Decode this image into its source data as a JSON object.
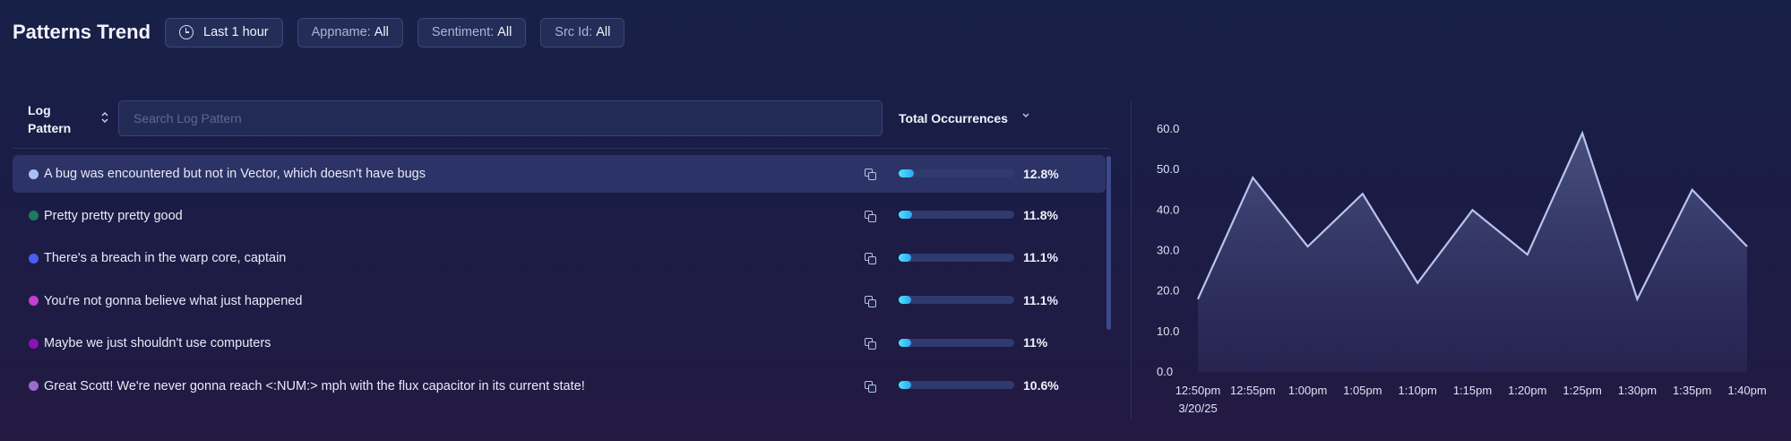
{
  "header": {
    "title": "Patterns Trend",
    "filters": [
      {
        "time": "Last 1 hour"
      },
      {
        "label": "Appname:",
        "value": "All"
      },
      {
        "label": "Sentiment:",
        "value": "All"
      },
      {
        "label": "Src Id:",
        "value": "All"
      }
    ]
  },
  "table": {
    "col_pattern": "Log Pattern",
    "search_placeholder": "Search Log Pattern",
    "col_total": "Total Occurrences",
    "rows": [
      {
        "text": "A bug was encountered but not in Vector, which doesn't have bugs",
        "pct": "12.8%",
        "value": 12.8,
        "color": "#a9c0f5",
        "highlight": true
      },
      {
        "text": "Pretty pretty pretty good",
        "pct": "11.8%",
        "value": 11.8,
        "color": "#1f7a5e"
      },
      {
        "text": "There's a breach in the warp core, captain",
        "pct": "11.1%",
        "value": 11.1,
        "color": "#4c5ef2"
      },
      {
        "text": "You're not gonna believe what just happened",
        "pct": "11.1%",
        "value": 11.1,
        "color": "#c53fd1"
      },
      {
        "text": "Maybe we just shouldn't use computers",
        "pct": "11%",
        "value": 11.0,
        "color": "#8a12b8"
      },
      {
        "text": "Great Scott! We're never gonna reach <:NUM:> mph with the flux capacitor in its current state!",
        "pct": "10.6%",
        "value": 10.6,
        "color": "#9b6bcc"
      }
    ]
  },
  "chart_data": {
    "type": "area",
    "x": [
      "12:50pm",
      "12:55pm",
      "1:00pm",
      "1:05pm",
      "1:10pm",
      "1:15pm",
      "1:20pm",
      "1:25pm",
      "1:30pm",
      "1:35pm",
      "1:40pm"
    ],
    "x_sublabel": "3/20/25",
    "series": [
      {
        "values": [
          18,
          48,
          31,
          44,
          22,
          40,
          29,
          59,
          18,
          45,
          31
        ]
      }
    ],
    "ylim": [
      0,
      60
    ],
    "yticks": [
      "60.0",
      "50.0",
      "40.0",
      "30.0",
      "20.0",
      "10.0",
      "0.0"
    ],
    "line_color": "#b7c4ec"
  }
}
